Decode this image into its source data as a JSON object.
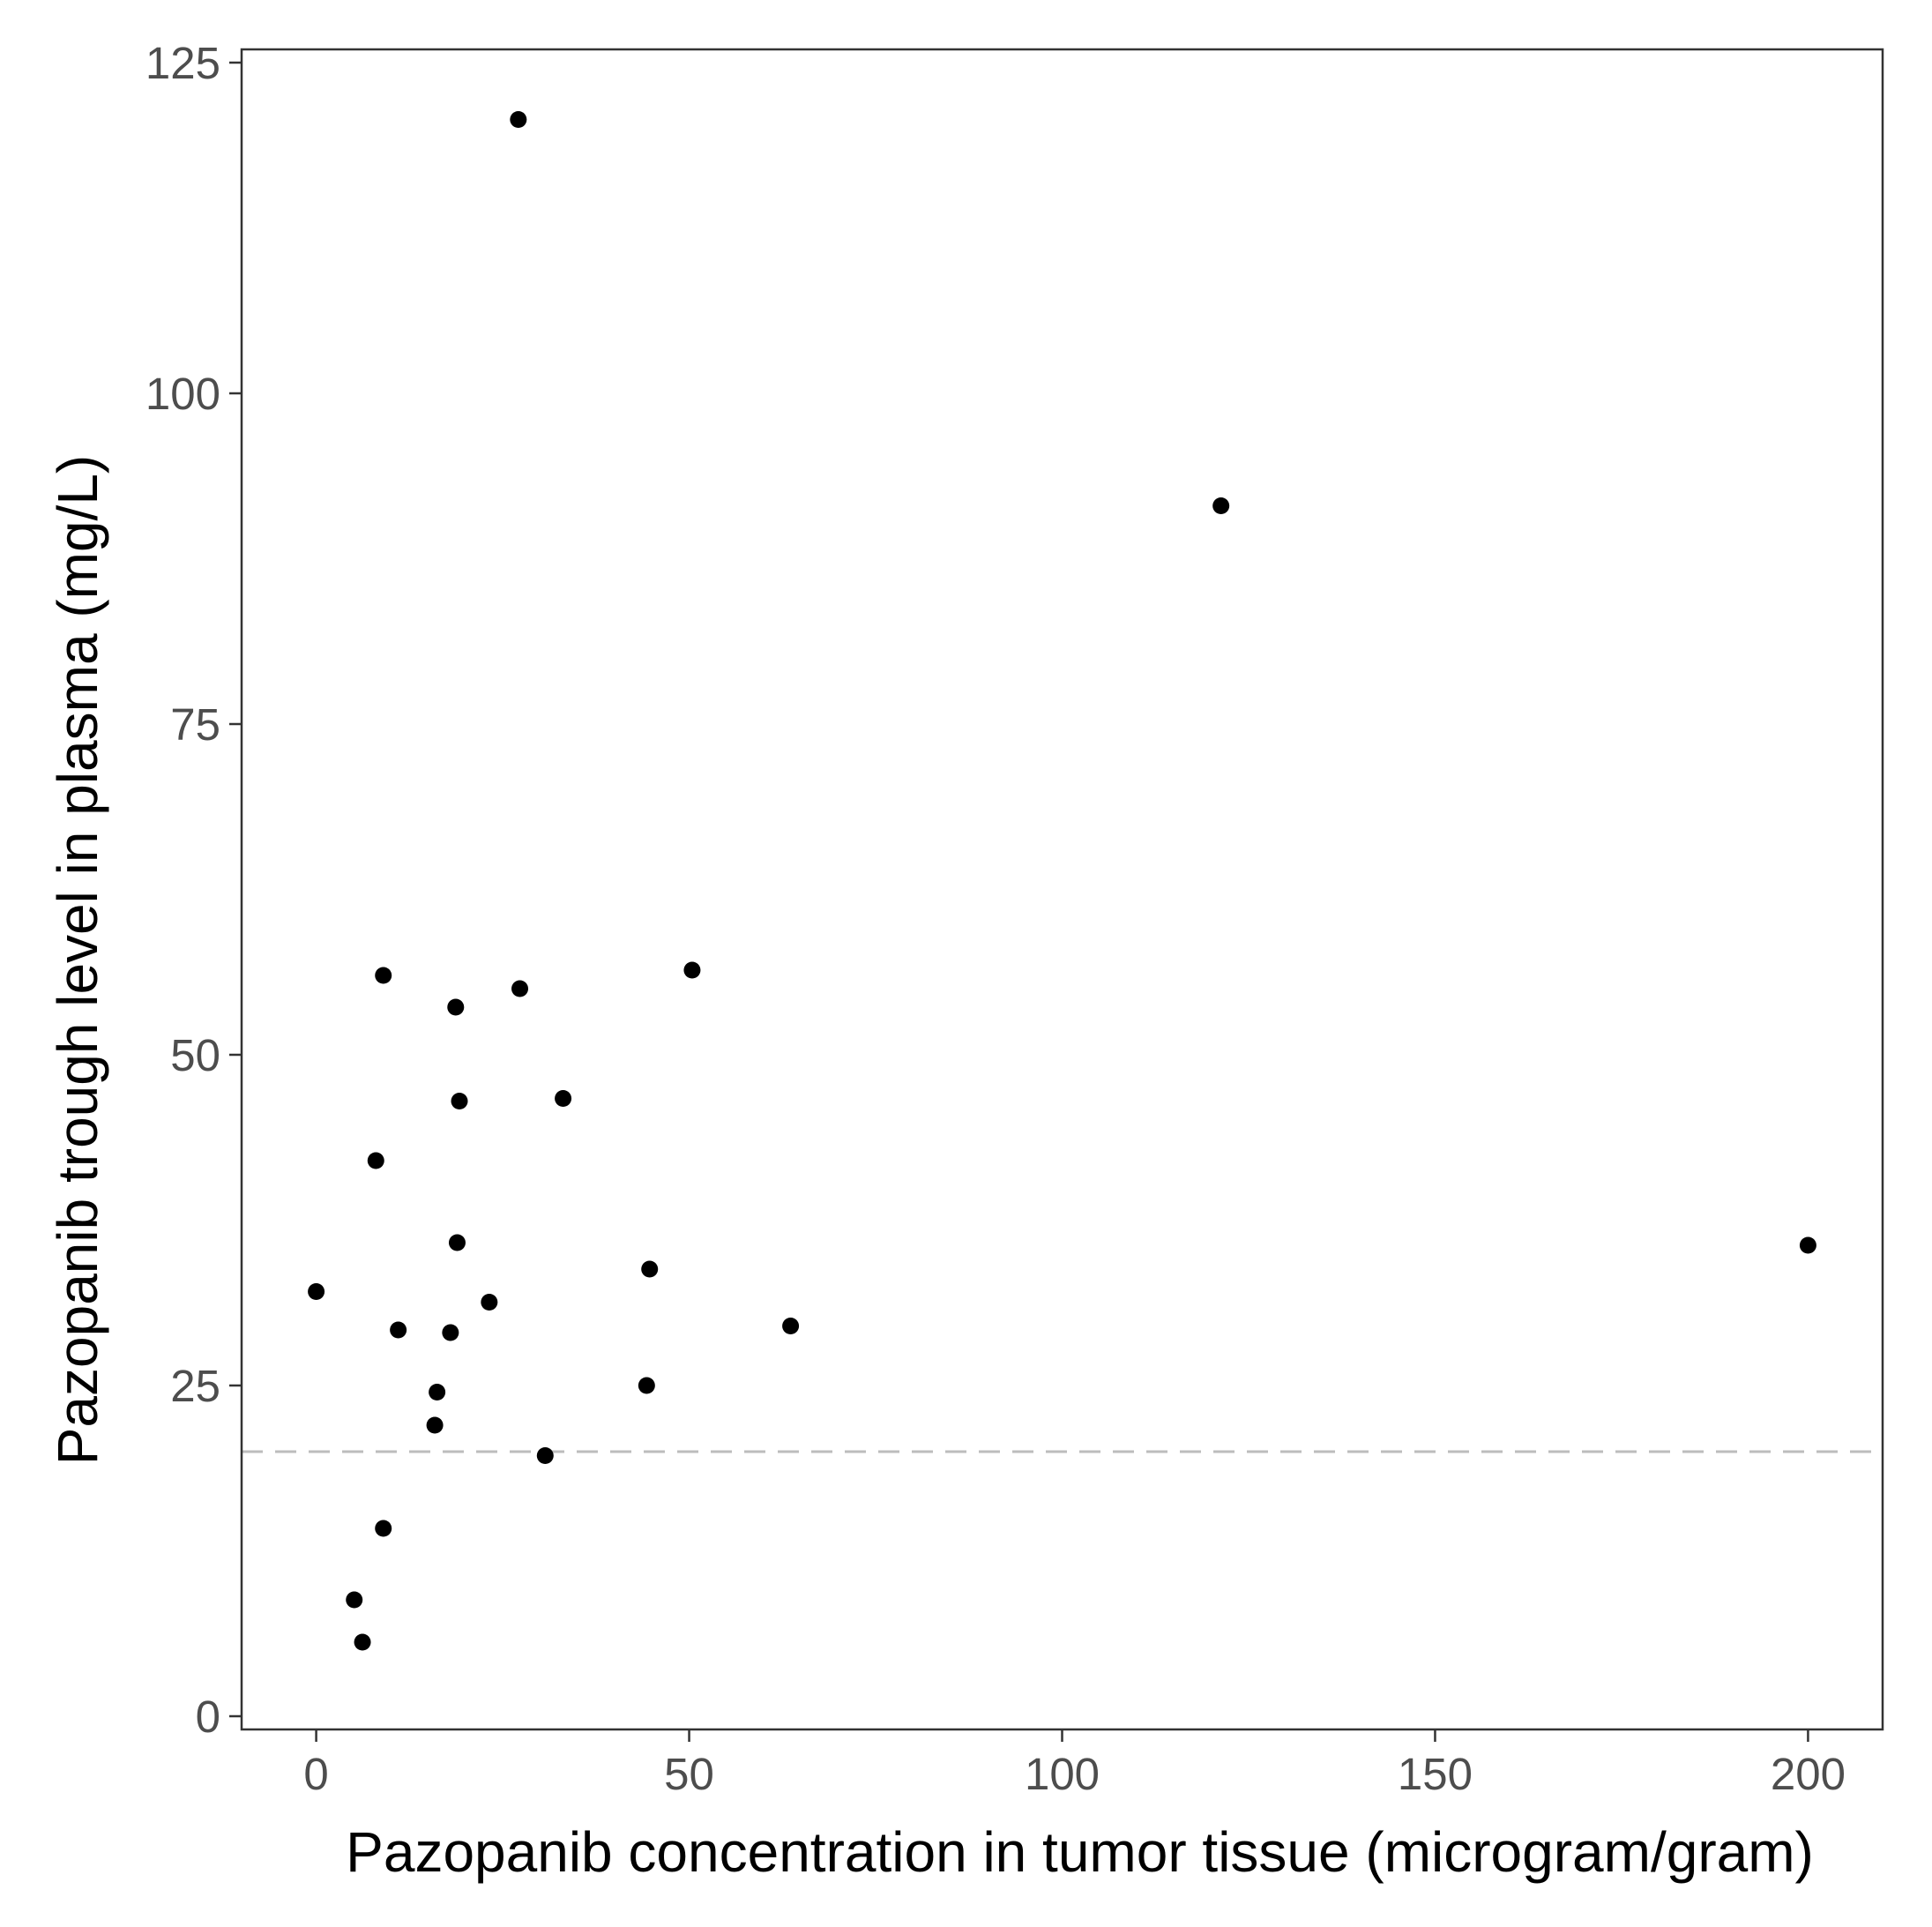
{
  "chart_data": {
    "type": "scatter",
    "title": "",
    "xlabel": "Pazopanib concentration in tumor tissue (microgram/gram)",
    "ylabel": "Pazopanib trough level in plasma (mg/L)",
    "xlim": [
      -10,
      210
    ],
    "ylim": [
      -1,
      126
    ],
    "x_ticks": [
      0,
      50,
      100,
      150,
      200
    ],
    "y_ticks": [
      0,
      25,
      50,
      75,
      100,
      125
    ],
    "grid": false,
    "legend": "none",
    "reference_line": {
      "y": 20,
      "style": "dashed",
      "color": "#bdbdbd"
    },
    "point_color": "#000000",
    "points": [
      {
        "x": 27.1,
        "y": 120.7
      },
      {
        "x": 121.3,
        "y": 91.5
      },
      {
        "x": 9.0,
        "y": 56.0
      },
      {
        "x": 27.3,
        "y": 55.0
      },
      {
        "x": 50.4,
        "y": 56.4
      },
      {
        "x": 18.7,
        "y": 53.6
      },
      {
        "x": 19.2,
        "y": 46.5
      },
      {
        "x": 33.1,
        "y": 46.7
      },
      {
        "x": 8.0,
        "y": 42.0
      },
      {
        "x": 18.9,
        "y": 35.8
      },
      {
        "x": 200.0,
        "y": 35.6
      },
      {
        "x": 44.7,
        "y": 33.8
      },
      {
        "x": 0.0,
        "y": 32.1
      },
      {
        "x": 23.2,
        "y": 31.3
      },
      {
        "x": 11.0,
        "y": 29.2
      },
      {
        "x": 18.0,
        "y": 29.0
      },
      {
        "x": 63.6,
        "y": 29.5
      },
      {
        "x": 16.2,
        "y": 24.5
      },
      {
        "x": 44.3,
        "y": 25.0
      },
      {
        "x": 15.9,
        "y": 22.0
      },
      {
        "x": 30.7,
        "y": 19.7
      },
      {
        "x": 9.0,
        "y": 14.2
      },
      {
        "x": 5.1,
        "y": 8.8
      },
      {
        "x": 6.2,
        "y": 5.6
      }
    ]
  }
}
